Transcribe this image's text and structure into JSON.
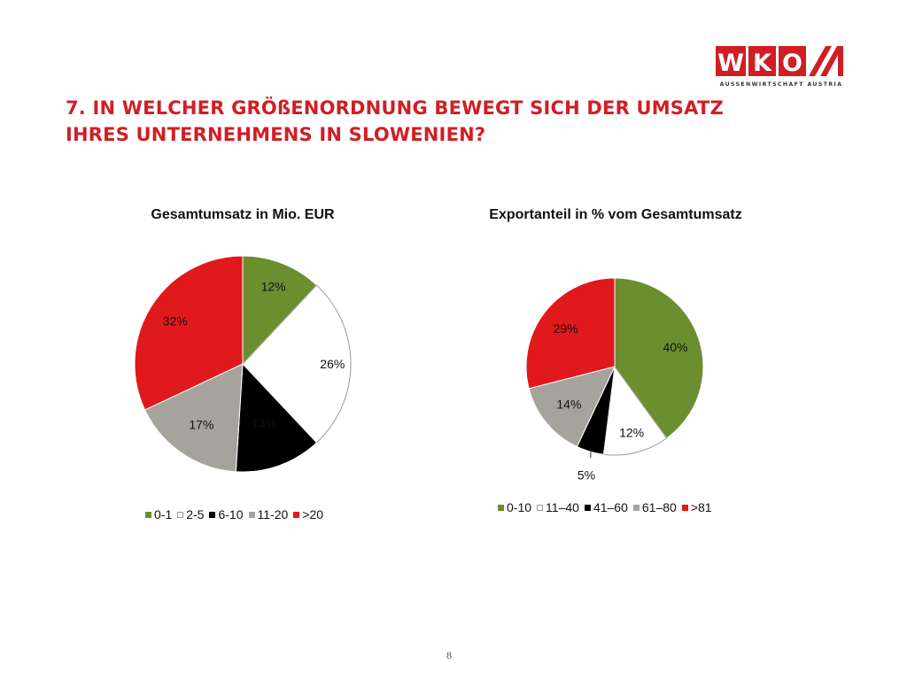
{
  "header": {
    "title_line1": "7. IN WELCHER GRÖßENORDNUNG BEWEGT SICH DER UMSATZ",
    "title_line2": "IHRES UNTERNEHMENS IN SLOWENIEN?",
    "logo_letters": [
      "W",
      "K",
      "O"
    ],
    "logo_subtitle": "AUSSENWIRTSCHAFT AUSTRIA",
    "brand_color": "#d01e24"
  },
  "chart_data": [
    {
      "type": "pie",
      "title": "Gesamtumsatz in Mio. EUR",
      "categories": [
        "0-1",
        "2-5",
        "6-10",
        "11-20",
        ">20"
      ],
      "values": [
        12,
        26,
        13,
        17,
        32
      ],
      "labels": [
        "12%",
        "26%",
        "13%",
        "17%",
        "32%"
      ],
      "colors": [
        "#6b8e2f",
        "#ffffff",
        "#000000",
        "#a6a39c",
        "#e0191c"
      ],
      "legend": "bottom"
    },
    {
      "type": "pie",
      "title": "Exportanteil in % vom Gesamtumsatz",
      "categories": [
        "0-10",
        "11–40",
        "41–60",
        "61–80",
        ">81"
      ],
      "values": [
        40,
        12,
        5,
        14,
        29
      ],
      "labels": [
        "40%",
        "12%",
        "5%",
        "14%",
        "29%"
      ],
      "colors": [
        "#6b8e2f",
        "#ffffff",
        "#000000",
        "#a6a39c",
        "#e0191c"
      ],
      "legend": "bottom"
    }
  ],
  "footer": {
    "page_number": "8"
  }
}
